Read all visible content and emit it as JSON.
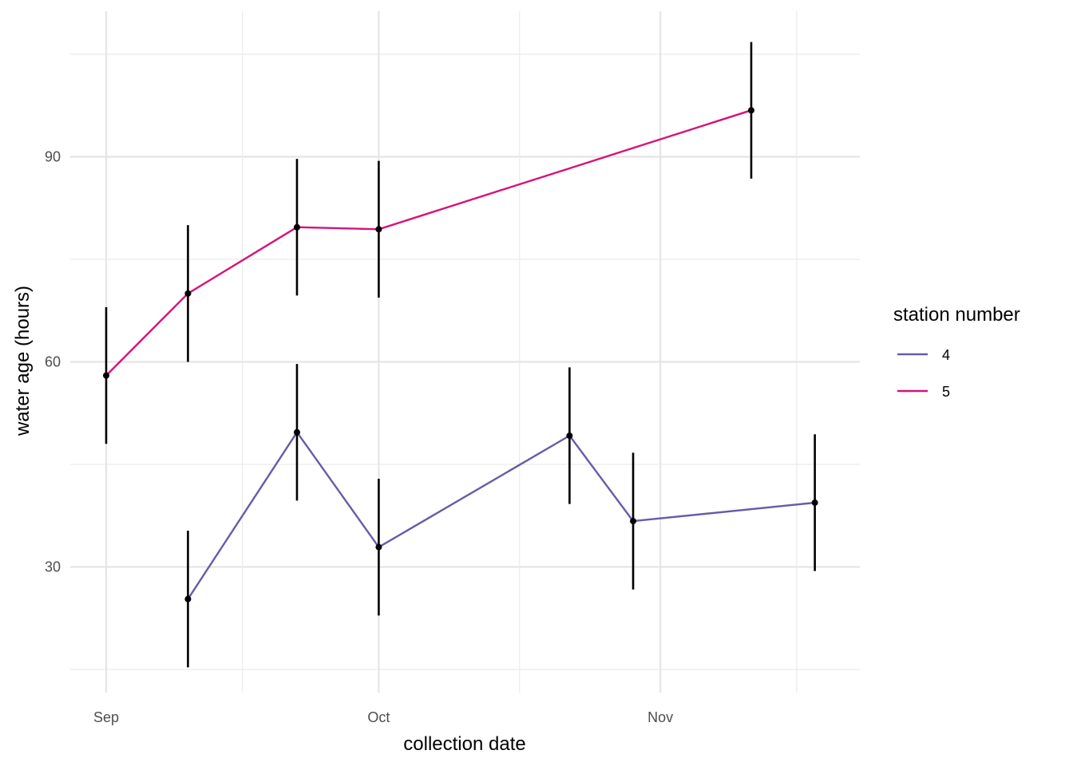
{
  "chart_data": {
    "type": "line",
    "xlabel": "collection date",
    "ylabel": "water age (hours)",
    "x_axis": {
      "type": "date",
      "range": [
        "2021-09-01",
        "2021-12-01"
      ],
      "ticks": [
        {
          "date": "2021-09-01",
          "label": "Sep"
        },
        {
          "date": "2021-10-01",
          "label": "Oct"
        },
        {
          "date": "2021-11-01",
          "label": "Nov"
        }
      ]
    },
    "y_axis": {
      "range": [
        14,
        105
      ],
      "ticks": [
        30,
        60,
        90
      ]
    },
    "grid": true,
    "legend": {
      "title": "station number",
      "position": "right"
    },
    "error_bars": {
      "half_width": 10,
      "color": "#000000"
    },
    "series": [
      {
        "name": "4",
        "color": "#6a5aa8",
        "points": [
          {
            "x": "2021-09-10",
            "y": 25.3
          },
          {
            "x": "2021-09-22",
            "y": 49.7
          },
          {
            "x": "2021-10-01",
            "y": 32.9
          },
          {
            "x": "2021-10-22",
            "y": 49.2
          },
          {
            "x": "2021-10-29",
            "y": 36.7
          },
          {
            "x": "2021-11-18",
            "y": 39.4
          }
        ]
      },
      {
        "name": "5",
        "color": "#d6137a",
        "points": [
          {
            "x": "2021-09-01",
            "y": 58.0
          },
          {
            "x": "2021-09-10",
            "y": 70.0
          },
          {
            "x": "2021-09-22",
            "y": 79.7
          },
          {
            "x": "2021-10-01",
            "y": 79.4
          },
          {
            "x": "2021-11-11",
            "y": 96.8
          }
        ]
      }
    ]
  }
}
